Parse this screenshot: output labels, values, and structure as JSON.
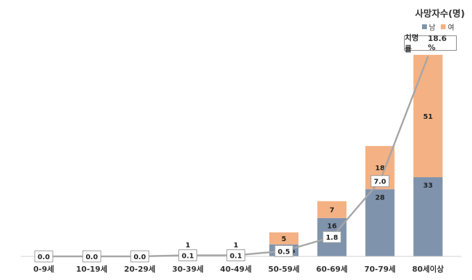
{
  "legend": {
    "title": "사망자수(명)",
    "series": [
      {
        "name": "남",
        "color": "#7f93ad"
      },
      {
        "name": "여",
        "color": "#f4b183"
      }
    ]
  },
  "rate_label": {
    "prefix": "치명률",
    "value": "18.6 %"
  },
  "colors": {
    "male": "#7f93ad",
    "female": "#f4b183",
    "line": "#a6a6a6"
  },
  "chart_data": {
    "type": "bar",
    "stacked": true,
    "categories": [
      "0-9세",
      "10-19세",
      "20-29세",
      "30-39세",
      "40-49세",
      "50-59세",
      "60-69세",
      "70-79세",
      "80세이상"
    ],
    "series": [
      {
        "name": "남",
        "values": [
          0,
          0,
          0,
          0,
          0,
          5,
          16,
          28,
          33
        ],
        "labels": [
          "",
          "",
          "",
          "",
          "",
          "5",
          "16",
          "28",
          "33"
        ]
      },
      {
        "name": "여",
        "values": [
          0,
          0,
          0,
          1,
          1,
          5,
          7,
          18,
          51
        ],
        "labels": [
          "",
          "",
          "",
          "1",
          "1",
          "5",
          "7",
          "18",
          "51"
        ]
      }
    ],
    "line": {
      "name": "치명률",
      "values": [
        0.0,
        0.0,
        0.0,
        0.1,
        0.1,
        0.5,
        1.8,
        7.0,
        18.6
      ],
      "labels": [
        "0.0",
        "0.0",
        "0.0",
        "0.1",
        "0.1",
        "0.5",
        "1.8",
        "7.0",
        ""
      ]
    },
    "ylim": [
      0,
      86
    ],
    "line_ylim": [
      0,
      19.2
    ],
    "grid": false
  }
}
